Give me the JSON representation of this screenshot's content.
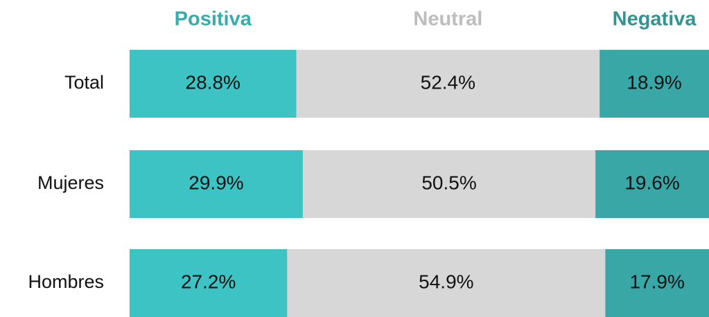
{
  "chart_data": {
    "type": "stacked_bar_horizontal",
    "categories": [
      "Total",
      "Mujeres",
      "Hombres"
    ],
    "series": [
      {
        "name": "Positiva",
        "color": "#3ec3c5",
        "values": [
          28.8,
          29.9,
          27.2
        ],
        "value_labels": [
          "28.8%",
          "29.9%",
          "27.2%"
        ]
      },
      {
        "name": "Neutral",
        "color": "#d7d7d7",
        "values": [
          52.4,
          50.5,
          54.9
        ],
        "value_labels": [
          "52.4%",
          "50.5%",
          "54.9%"
        ]
      },
      {
        "name": "Negativa",
        "color": "#3aa7a7",
        "values": [
          18.9,
          19.6,
          17.9
        ],
        "value_labels": [
          "18.9%",
          "19.6%",
          "17.9%"
        ]
      }
    ]
  }
}
